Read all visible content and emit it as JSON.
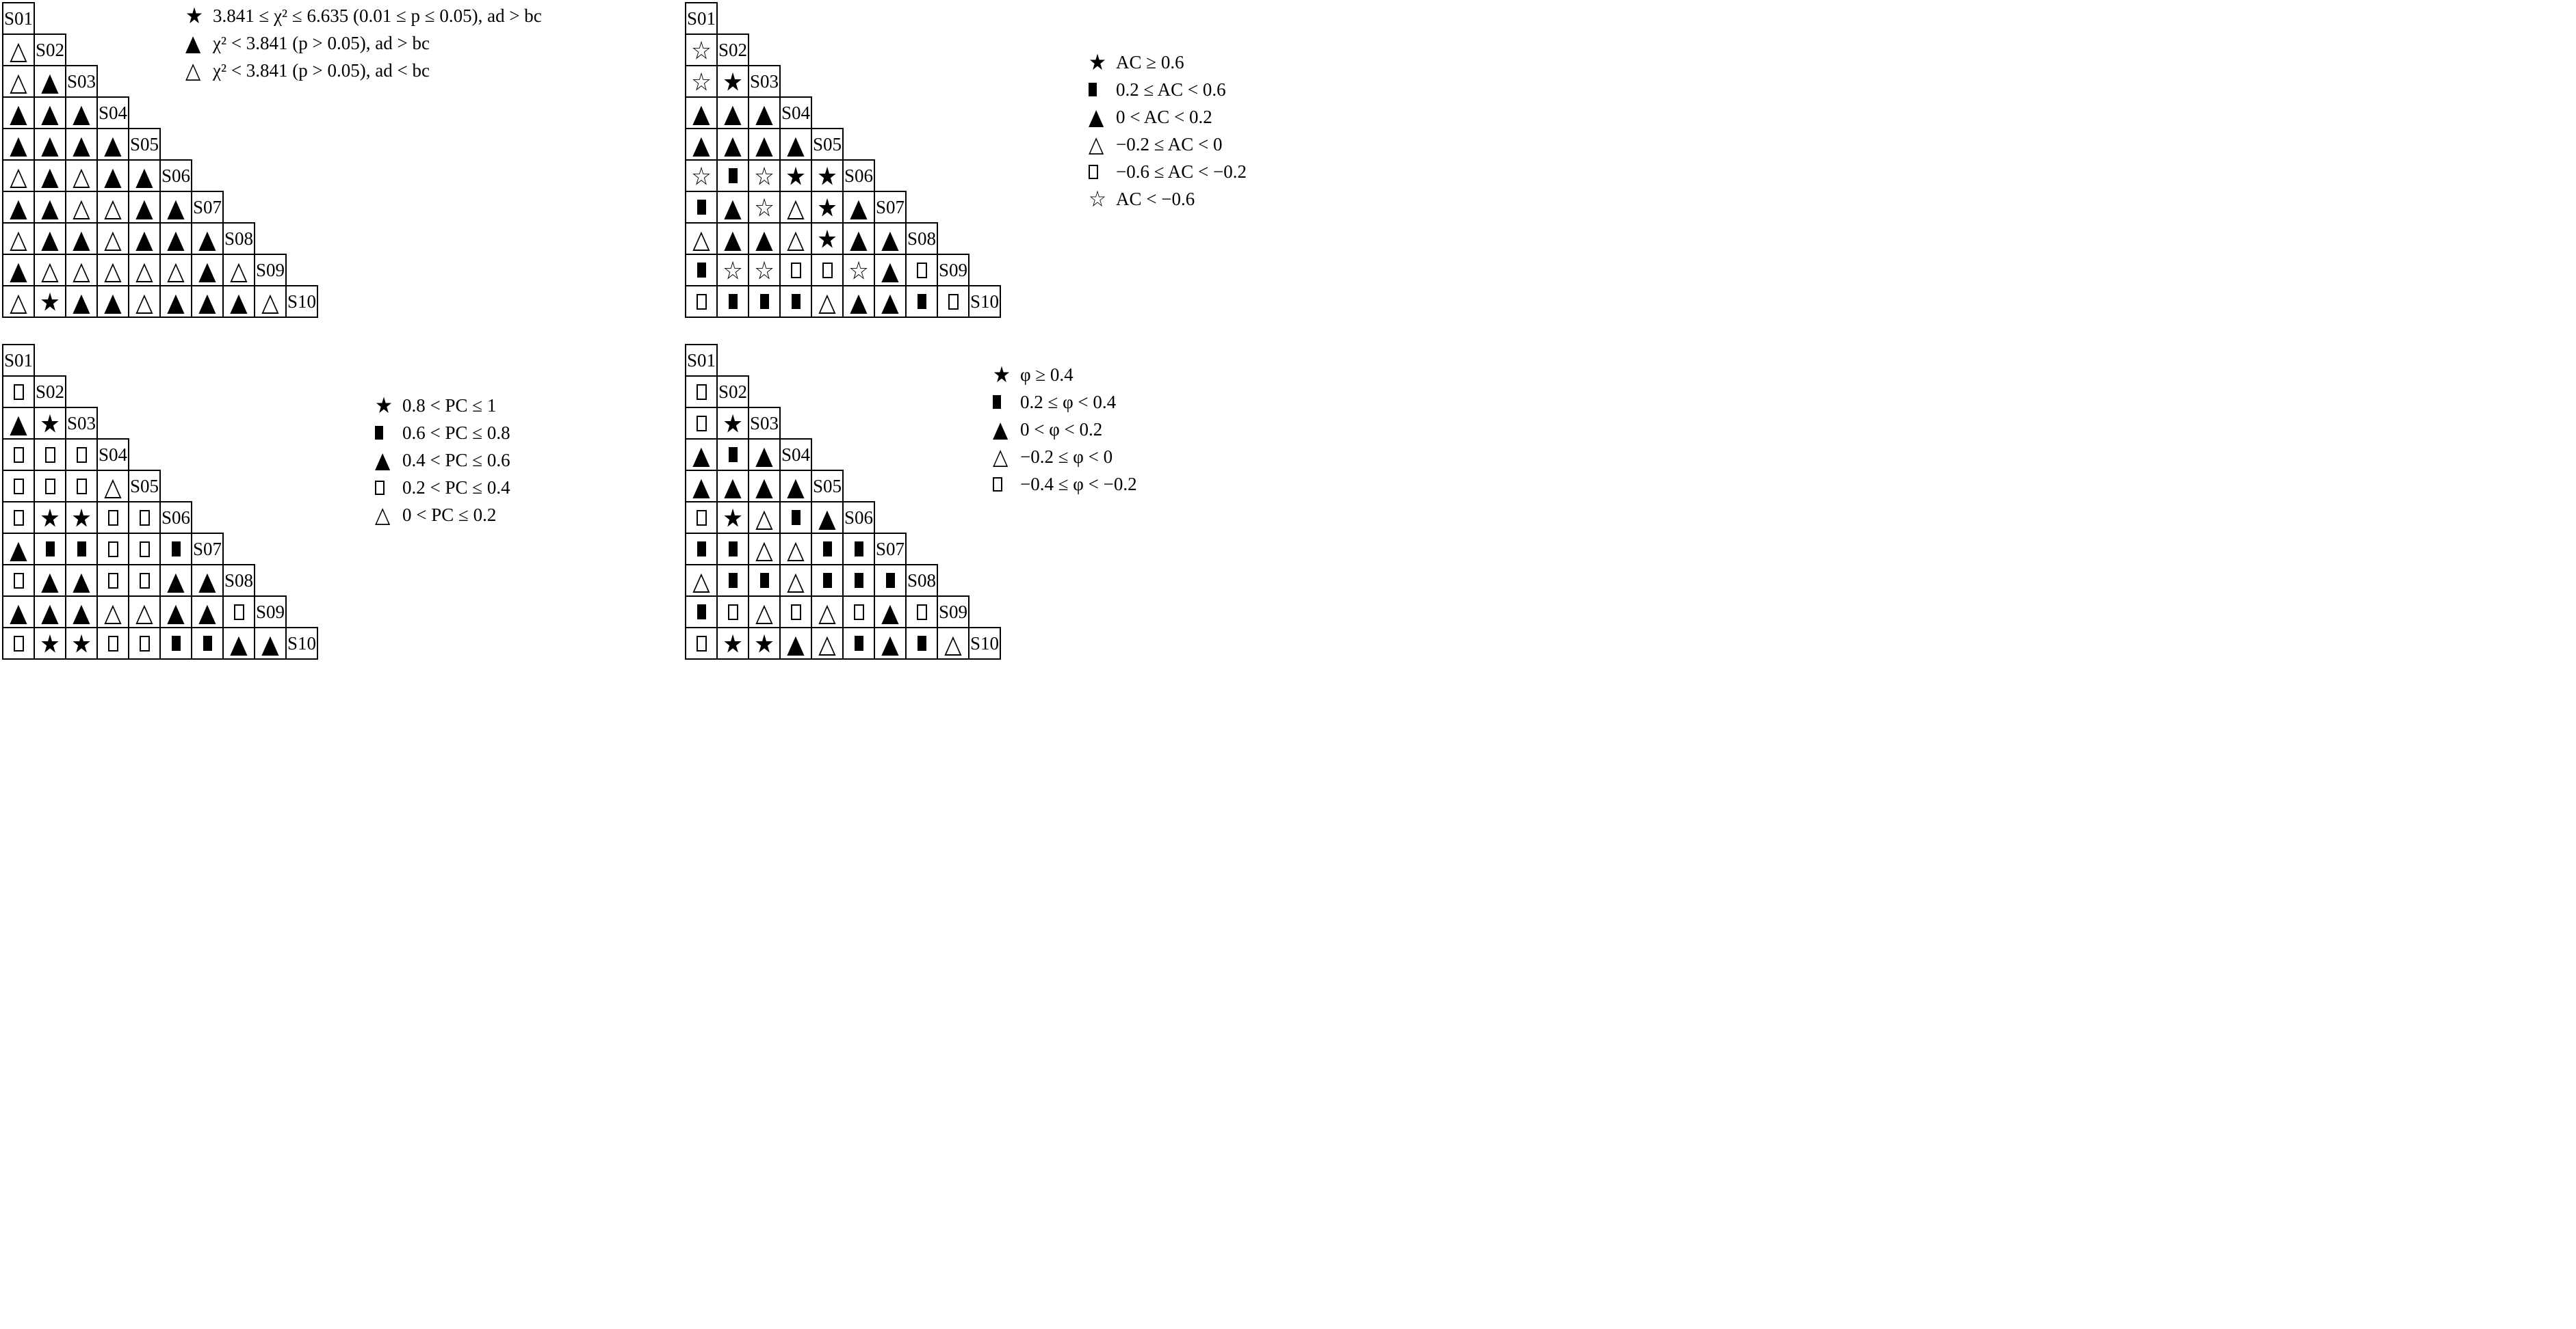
{
  "figure": {
    "description": "Four lower-triangular pairwise comparison matrices between samples S01 to S10, each cell marked with a categorical symbol",
    "colors": {
      "foreground": "#000000",
      "background": "#ffffff"
    }
  },
  "symbols": {
    "fs": "filled-star",
    "os": "open-star",
    "ft": "filled-triangle",
    "ot": "open-triangle",
    "fq": "filled-square",
    "oq": "open-square"
  },
  "chart_data": [
    {
      "type": "table",
      "subtype": "pairwise-symbol-matrix",
      "measure": "chi-square",
      "position": "top-left",
      "labels": [
        "S01",
        "S02",
        "S03",
        "S04",
        "S05",
        "S06",
        "S07",
        "S08",
        "S09",
        "S10"
      ],
      "legend": [
        {
          "symbol": "fs",
          "text": "3.841 ≤ χ² ≤ 6.635 (0.01 ≤ p ≤ 0.05), ad > bc"
        },
        {
          "symbol": "ft",
          "text": "χ² < 3.841 (p > 0.05), ad > bc"
        },
        {
          "symbol": "ot",
          "text": "χ² < 3.841 (p > 0.05), ad < bc"
        }
      ],
      "rows": [
        [],
        [
          "ot"
        ],
        [
          "ot",
          "ft"
        ],
        [
          "ft",
          "ft",
          "ft"
        ],
        [
          "ft",
          "ft",
          "ft",
          "ft"
        ],
        [
          "ot",
          "ft",
          "ot",
          "ft",
          "ft"
        ],
        [
          "ft",
          "ft",
          "ot",
          "ot",
          "ft",
          "ft"
        ],
        [
          "ot",
          "ft",
          "ft",
          "ot",
          "ft",
          "ft",
          "ft"
        ],
        [
          "ft",
          "ot",
          "ot",
          "ot",
          "ot",
          "ot",
          "ft",
          "ot"
        ],
        [
          "ot",
          "fs",
          "ft",
          "ft",
          "ot",
          "ft",
          "ft",
          "ft",
          "ot"
        ]
      ]
    },
    {
      "type": "table",
      "subtype": "pairwise-symbol-matrix",
      "measure": "AC",
      "position": "top-right",
      "labels": [
        "S01",
        "S02",
        "S03",
        "S04",
        "S05",
        "S06",
        "S07",
        "S08",
        "S09",
        "S10"
      ],
      "legend": [
        {
          "symbol": "fs",
          "text": "AC ≥ 0.6"
        },
        {
          "symbol": "fq",
          "text": "0.2 ≤ AC < 0.6"
        },
        {
          "symbol": "ft",
          "text": "0 < AC < 0.2"
        },
        {
          "symbol": "ot",
          "text": "−0.2 ≤ AC < 0"
        },
        {
          "symbol": "oq",
          "text": "−0.6 ≤ AC < −0.2"
        },
        {
          "symbol": "os",
          "text": "AC < −0.6"
        }
      ],
      "rows": [
        [],
        [
          "os"
        ],
        [
          "os",
          "fs"
        ],
        [
          "ft",
          "ft",
          "ft"
        ],
        [
          "ft",
          "ft",
          "ft",
          "ft"
        ],
        [
          "os",
          "fq",
          "os",
          "fs",
          "fs"
        ],
        [
          "fq",
          "ft",
          "os",
          "ot",
          "fs",
          "ft"
        ],
        [
          "ot",
          "ft",
          "ft",
          "ot",
          "fs",
          "ft",
          "ft"
        ],
        [
          "fq",
          "os",
          "os",
          "oq",
          "oq",
          "os",
          "ft",
          "oq"
        ],
        [
          "oq",
          "fq",
          "fq",
          "fq",
          "ot",
          "ft",
          "ft",
          "fq",
          "oq"
        ]
      ]
    },
    {
      "type": "table",
      "subtype": "pairwise-symbol-matrix",
      "measure": "PC",
      "position": "bottom-left",
      "labels": [
        "S01",
        "S02",
        "S03",
        "S04",
        "S05",
        "S06",
        "S07",
        "S08",
        "S09",
        "S10"
      ],
      "legend": [
        {
          "symbol": "fs",
          "text": "0.8 < PC ≤ 1"
        },
        {
          "symbol": "fq",
          "text": "0.6 < PC ≤ 0.8"
        },
        {
          "symbol": "ft",
          "text": "0.4 < PC ≤ 0.6"
        },
        {
          "symbol": "oq",
          "text": "0.2 < PC ≤ 0.4"
        },
        {
          "symbol": "ot",
          "text": "0 < PC ≤ 0.2"
        }
      ],
      "rows": [
        [],
        [
          "oq"
        ],
        [
          "ft",
          "fs"
        ],
        [
          "oq",
          "oq",
          "oq"
        ],
        [
          "oq",
          "oq",
          "oq",
          "ot"
        ],
        [
          "oq",
          "fs",
          "fs",
          "oq",
          "oq"
        ],
        [
          "ft",
          "fq",
          "fq",
          "oq",
          "oq",
          "fq"
        ],
        [
          "oq",
          "ft",
          "ft",
          "oq",
          "oq",
          "ft",
          "ft"
        ],
        [
          "ft",
          "ft",
          "ft",
          "ot",
          "ot",
          "ft",
          "ft",
          "oq"
        ],
        [
          "oq",
          "fs",
          "fs",
          "oq",
          "oq",
          "fq",
          "fq",
          "ft",
          "ft"
        ]
      ]
    },
    {
      "type": "table",
      "subtype": "pairwise-symbol-matrix",
      "measure": "phi",
      "position": "bottom-right",
      "labels": [
        "S01",
        "S02",
        "S03",
        "S04",
        "S05",
        "S06",
        "S07",
        "S08",
        "S09",
        "S10"
      ],
      "legend": [
        {
          "symbol": "fs",
          "text": "φ ≥ 0.4"
        },
        {
          "symbol": "fq",
          "text": "0.2 ≤ φ < 0.4"
        },
        {
          "symbol": "ft",
          "text": "0 < φ < 0.2"
        },
        {
          "symbol": "ot",
          "text": "−0.2 ≤ φ < 0"
        },
        {
          "symbol": "oq",
          "text": "−0.4 ≤ φ < −0.2"
        }
      ],
      "rows": [
        [],
        [
          "oq"
        ],
        [
          "oq",
          "fs"
        ],
        [
          "ft",
          "fq",
          "ft"
        ],
        [
          "ft",
          "ft",
          "ft",
          "ft"
        ],
        [
          "oq",
          "fs",
          "ot",
          "fq",
          "ft"
        ],
        [
          "fq",
          "fq",
          "ot",
          "ot",
          "fq",
          "fq"
        ],
        [
          "ot",
          "fq",
          "fq",
          "ot",
          "fq",
          "fq",
          "fq"
        ],
        [
          "fq",
          "oq",
          "ot",
          "oq",
          "ot",
          "oq",
          "ft",
          "oq"
        ],
        [
          "oq",
          "fs",
          "fs",
          "ft",
          "ot",
          "fq",
          "ft",
          "fq",
          "ot"
        ]
      ]
    }
  ]
}
